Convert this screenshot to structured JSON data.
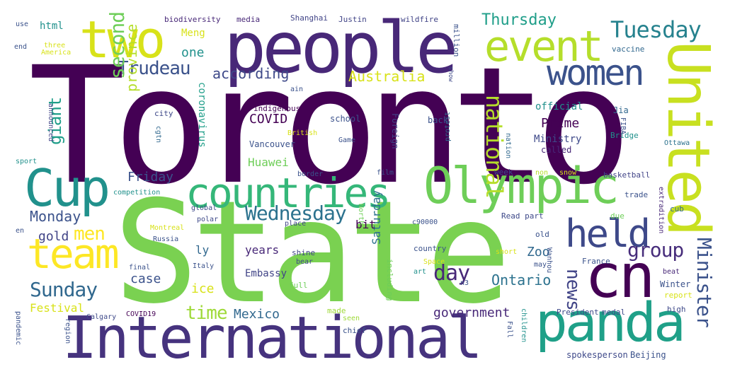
{
  "palette": {
    "dark_purple": "#440154",
    "indigo": "#3b528b",
    "blue": "#31688e",
    "teal": "#21918c",
    "green": "#35b779",
    "lime": "#8fd744",
    "yellow": "#d5e21a"
  },
  "words": [
    {
      "text": "Toronto",
      "color": "#440154"
    },
    {
      "text": "State",
      "color": "#7ad151"
    },
    {
      "text": "International",
      "color": "#46337e"
    },
    {
      "text": "people",
      "color": "#482878"
    },
    {
      "text": "Olympic",
      "color": "#6ece58"
    },
    {
      "text": "countries",
      "color": "#35b779"
    },
    {
      "text": "United",
      "color": "#c8e020"
    },
    {
      "text": "panda",
      "color": "#1fa088"
    },
    {
      "text": "cn",
      "color": "#440154"
    },
    {
      "text": "Cup",
      "color": "#21918c"
    },
    {
      "text": "team",
      "color": "#fde725"
    },
    {
      "text": "two",
      "color": "#d8e219"
    },
    {
      "text": "event",
      "color": "#b5de2b"
    },
    {
      "text": "women",
      "color": "#3b528b"
    },
    {
      "text": "held",
      "color": "#3e4989"
    },
    {
      "text": "Tuesday",
      "color": "#26828e"
    },
    {
      "text": "Minister",
      "color": "#3b528b"
    },
    {
      "text": "national",
      "color": "#b5de2b"
    },
    {
      "text": "group",
      "color": "#472d7b"
    },
    {
      "text": "Wednesday",
      "color": "#2c728e"
    },
    {
      "text": "Trudeau",
      "color": "#3b528b"
    },
    {
      "text": "Sunday",
      "color": "#31688e"
    },
    {
      "text": "second",
      "color": "#6ece58"
    },
    {
      "text": "giant",
      "color": "#1f9e89"
    },
    {
      "text": "men",
      "color": "#fde725"
    },
    {
      "text": "news",
      "color": "#414487"
    },
    {
      "text": "time",
      "color": "#9fda3a"
    },
    {
      "text": "day",
      "color": "#482878"
    },
    {
      "text": "according",
      "color": "#3e4989"
    },
    {
      "text": "Australia",
      "color": "#d8e219"
    },
    {
      "text": "Thursday",
      "color": "#1f9e89"
    },
    {
      "text": "Friday",
      "color": "#3b528b"
    },
    {
      "text": "Monday",
      "color": "#3b528b"
    },
    {
      "text": "province",
      "color": "#b5de2b"
    },
    {
      "text": "Ontario",
      "color": "#2c728e"
    },
    {
      "text": "Mexico",
      "color": "#31688e"
    },
    {
      "text": "government",
      "color": "#482878"
    },
    {
      "text": "one",
      "color": "#21918c"
    },
    {
      "text": "Huawei",
      "color": "#6ece58"
    },
    {
      "text": "COVID",
      "color": "#440154"
    },
    {
      "text": "gold",
      "color": "#414487"
    },
    {
      "text": "Saturday",
      "color": "#2c728e"
    },
    {
      "text": "Festival",
      "color": "#d8e219"
    },
    {
      "text": "case",
      "color": "#3b528b"
    },
    {
      "text": "ice",
      "color": "#d8e219"
    },
    {
      "text": "Prime",
      "color": "#440154"
    },
    {
      "text": "Zoo",
      "color": "#31688e"
    },
    {
      "text": "years",
      "color": "#482878"
    },
    {
      "text": "ly",
      "color": "#31688e"
    },
    {
      "text": "bit",
      "color": "#440154"
    },
    {
      "text": "Embassy",
      "color": "#414487"
    },
    {
      "text": "Meng",
      "color": "#d8e219"
    },
    {
      "text": "html",
      "color": "#21918c"
    },
    {
      "text": "coronavirus",
      "color": "#1f9e89"
    },
    {
      "text": "Vancouver",
      "color": "#3b528b"
    },
    {
      "text": "Ministry",
      "color": "#3e4989"
    },
    {
      "text": "official",
      "color": "#21918c"
    },
    {
      "text": "school",
      "color": "#3b528b"
    },
    {
      "text": "indigenous",
      "color": "#440154"
    },
    {
      "text": "city",
      "color": "#3e4989"
    },
    {
      "text": "Jia",
      "color": "#31688e"
    },
    {
      "text": "back",
      "color": "#3b528b"
    },
    {
      "text": "Foreign",
      "color": "#414487"
    },
    {
      "text": "called",
      "color": "#482878"
    },
    {
      "text": "Bridge",
      "color": "#21918c"
    },
    {
      "text": "Ottawa",
      "color": "#2c728e"
    },
    {
      "text": "basketball",
      "color": "#414487"
    },
    {
      "text": "week",
      "color": "#3e4989"
    },
    {
      "text": "snow",
      "color": "#d8e219"
    },
    {
      "text": "non",
      "color": "#b5de2b"
    },
    {
      "text": "trade",
      "color": "#3b528b"
    },
    {
      "text": "cub",
      "color": "#31688e"
    },
    {
      "text": "Read part",
      "color": "#3e4989"
    },
    {
      "text": "due",
      "color": "#6ece58"
    },
    {
      "text": "extradition",
      "color": "#482878"
    },
    {
      "text": "old",
      "color": "#3b528b"
    },
    {
      "text": "country",
      "color": "#3b528b"
    },
    {
      "text": "France",
      "color": "#3b528b"
    },
    {
      "text": "Winter",
      "color": "#3b528b"
    },
    {
      "text": "report",
      "color": "#d8e219"
    },
    {
      "text": "beat",
      "color": "#482878"
    },
    {
      "text": "high",
      "color": "#3e4989"
    },
    {
      "text": "medal",
      "color": "#3e4989"
    },
    {
      "text": "President",
      "color": "#3e4989"
    },
    {
      "text": "spokesperson",
      "color": "#3e4989"
    },
    {
      "text": "Beijing",
      "color": "#3b528b"
    },
    {
      "text": "chief",
      "color": "#3b528b"
    },
    {
      "text": "seen",
      "color": "#9fda3a"
    },
    {
      "text": "made",
      "color": "#9fda3a"
    },
    {
      "text": "including",
      "color": "#6ece58"
    },
    {
      "text": "full",
      "color": "#6ece58"
    },
    {
      "text": "art",
      "color": "#21918c"
    },
    {
      "text": "Space",
      "color": "#d8e219"
    },
    {
      "text": "bear",
      "color": "#3e4989"
    },
    {
      "text": "shine",
      "color": "#414487"
    },
    {
      "text": "place",
      "color": "#414487"
    },
    {
      "text": "North",
      "color": "#6ece58"
    },
    {
      "text": "c90000",
      "color": "#3b528b"
    },
    {
      "text": "n3",
      "color": "#3b528b"
    },
    {
      "text": "short",
      "color": "#d8e219"
    },
    {
      "text": "may",
      "color": "#3b528b"
    },
    {
      "text": "Wanhou",
      "color": "#3b528b"
    },
    {
      "text": "film",
      "color": "#3b528b"
    },
    {
      "text": "border",
      "color": "#3b528b"
    },
    {
      "text": "protest",
      "color": "#31688e"
    },
    {
      "text": "nation",
      "color": "#31688e"
    },
    {
      "text": "Game",
      "color": "#3b528b"
    },
    {
      "text": "British",
      "color": "#d8e219"
    },
    {
      "text": "cgtn",
      "color": "#31688e"
    },
    {
      "text": "FIBA",
      "color": "#3b528b"
    },
    {
      "text": "biodiversity",
      "color": "#482878"
    },
    {
      "text": "media",
      "color": "#482878"
    },
    {
      "text": "Shanghai",
      "color": "#414487"
    },
    {
      "text": "Justin",
      "color": "#414487"
    },
    {
      "text": "wildfire",
      "color": "#414487"
    },
    {
      "text": "million",
      "color": "#3b528b"
    },
    {
      "text": "vaccine",
      "color": "#31688e"
    },
    {
      "text": "show",
      "color": "#3e4989"
    },
    {
      "text": "ain",
      "color": "#3b528b"
    },
    {
      "text": "use",
      "color": "#3b528b"
    },
    {
      "text": "end",
      "color": "#3b528b"
    },
    {
      "text": "three",
      "color": "#d8e219"
    },
    {
      "text": "America",
      "color": "#d8e219"
    },
    {
      "text": "announced",
      "color": "#414487"
    },
    {
      "text": "sport",
      "color": "#21918c"
    },
    {
      "text": "competition",
      "color": "#21918c"
    },
    {
      "text": "global",
      "color": "#3e4989"
    },
    {
      "text": "polar",
      "color": "#3e4989"
    },
    {
      "text": "Montreal",
      "color": "#d8e219"
    },
    {
      "text": "Russia",
      "color": "#3b528b"
    },
    {
      "text": "final",
      "color": "#3b528b"
    },
    {
      "text": "Italy",
      "color": "#3b528b"
    },
    {
      "text": "en",
      "color": "#3b528b"
    },
    {
      "text": "Calgary",
      "color": "#3e4989"
    },
    {
      "text": "COVID19",
      "color": "#440154"
    },
    {
      "text": "pandemic",
      "color": "#3b528b"
    },
    {
      "text": "region",
      "color": "#3b528b"
    },
    {
      "text": "Fall",
      "color": "#3b528b"
    },
    {
      "text": "children",
      "color": "#21918c"
    }
  ]
}
